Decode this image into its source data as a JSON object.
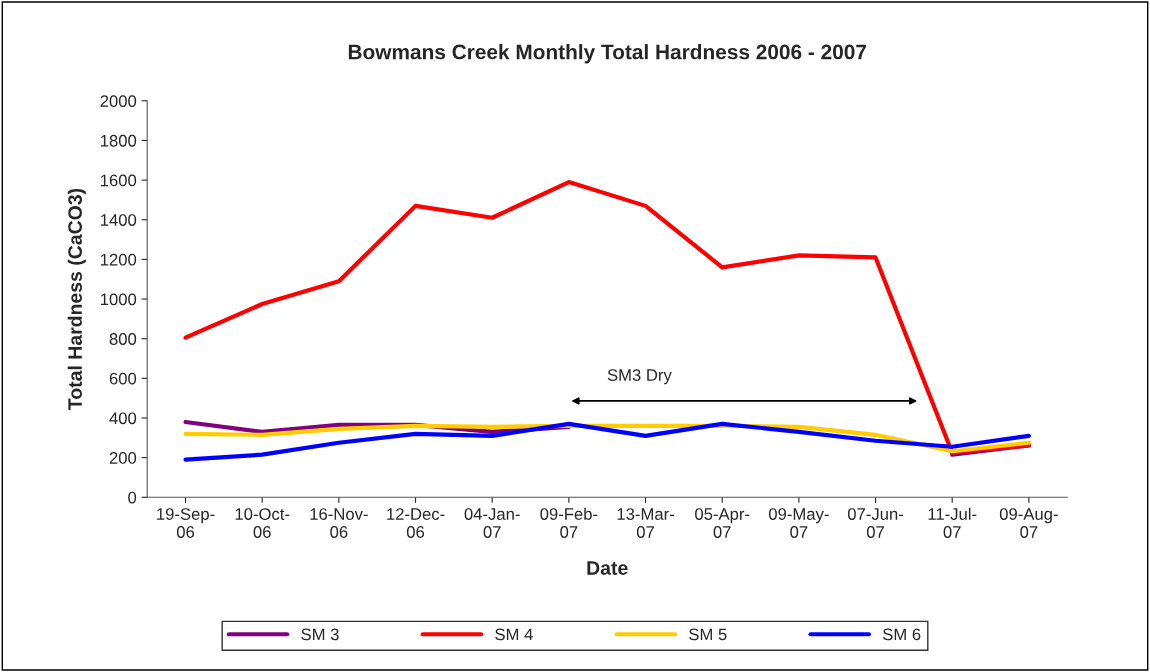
{
  "chart_data": {
    "type": "line",
    "title": "Bowmans Creek Monthly Total Hardness 2006 - 2007",
    "xlabel": "Date",
    "ylabel": "Total Hardness (CaCO3)",
    "categories": [
      "19-Sep-\n06",
      "10-Oct-\n06",
      "16-Nov-\n06",
      "12-Dec-\n06",
      "04-Jan-\n07",
      "09-Feb-\n07",
      "13-Mar-\n07",
      "05-Apr-\n07",
      "09-May-\n07",
      "07-Jun-\n07",
      "11-Jul-\n07",
      "09-Aug-\n07"
    ],
    "series": [
      {
        "name": "SM 3",
        "color": "#800080",
        "values": [
          380,
          330,
          365,
          365,
          330,
          355,
          null,
          null,
          null,
          null,
          215,
          262
        ]
      },
      {
        "name": "SM 4",
        "color": "#ff0000",
        "values": [
          805,
          975,
          1090,
          1470,
          1410,
          1590,
          1470,
          1160,
          1220,
          1210,
          225,
          262
        ]
      },
      {
        "name": "SM 5",
        "color": "#ffcc00",
        "values": [
          320,
          315,
          345,
          360,
          355,
          360,
          360,
          360,
          355,
          315,
          232,
          275
        ]
      },
      {
        "name": "SM 6",
        "color": "#0000ff",
        "values": [
          190,
          215,
          275,
          320,
          310,
          370,
          310,
          370,
          330,
          285,
          255,
          310
        ]
      }
    ],
    "ylim": [
      0,
      2000
    ],
    "yticks": [
      0,
      200,
      400,
      600,
      800,
      1000,
      1200,
      1400,
      1600,
      1800,
      2000
    ],
    "annotations": [
      "SM3 Dry"
    ],
    "legend": "bottom",
    "grid": false,
    "marker": "none",
    "line_style": "solid"
  }
}
